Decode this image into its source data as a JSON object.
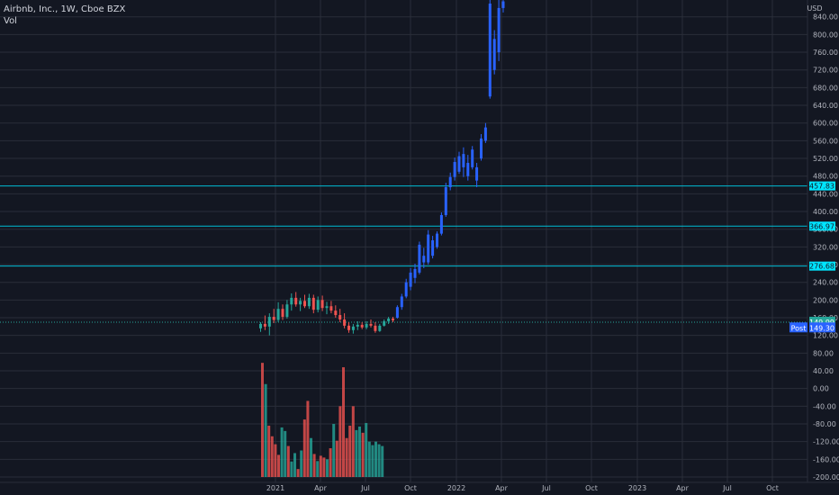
{
  "legend": {
    "symbol_line": "Airbnb, Inc., 1W, Cboe BZX",
    "volume_label": "Vol"
  },
  "currency": "USD",
  "post_label": "Post",
  "colors": {
    "background": "#131722",
    "grid": "#2a2e39",
    "up": "#26a69a",
    "down": "#ef5350",
    "blue": "#2962ff",
    "level_line": "#00bcd4",
    "level_tag_bg": "#00e5ff",
    "vol_up": "#26a69a",
    "vol_down": "#ef5350"
  },
  "chart_data": {
    "type": "candlestick",
    "title": "Airbnb, Inc., 1W, Cboe BZX",
    "y_unit": "USD",
    "ylim": [
      -200,
      880
    ],
    "y_ticks": [
      "840.00",
      "800.00",
      "760.00",
      "720.00",
      "680.00",
      "640.00",
      "600.00",
      "560.00",
      "520.00",
      "480.00",
      "440.00",
      "400.00",
      "360.00",
      "320.00",
      "280.00",
      "240.00",
      "200.00",
      "160.00",
      "120.00",
      "80.00",
      "40.00",
      "0.00",
      "-40.00",
      "-80.00",
      "-120.00",
      "-160.00",
      "-200.00"
    ],
    "x_ticks": [
      "2021",
      "Apr",
      "Jul",
      "Oct",
      "2022",
      "Apr",
      "Jul",
      "Oct",
      "2023",
      "Apr",
      "Jul",
      "Oct"
    ],
    "price_levels": [
      {
        "value": 457.83,
        "label": "457.83"
      },
      {
        "value": 366.97,
        "label": "366.97"
      },
      {
        "value": 276.68,
        "label": "276.68"
      }
    ],
    "last_price": {
      "value": 149.99,
      "label": "149.99"
    },
    "post_price": {
      "value": 149.3,
      "label": "149.30"
    },
    "candles": [
      {
        "o": 136,
        "h": 150,
        "l": 128,
        "c": 146,
        "color": "up"
      },
      {
        "o": 146,
        "h": 165,
        "l": 132,
        "c": 140,
        "color": "down"
      },
      {
        "o": 140,
        "h": 170,
        "l": 120,
        "c": 162,
        "color": "up"
      },
      {
        "o": 162,
        "h": 180,
        "l": 148,
        "c": 155,
        "color": "down"
      },
      {
        "o": 155,
        "h": 195,
        "l": 150,
        "c": 180,
        "color": "up"
      },
      {
        "o": 180,
        "h": 190,
        "l": 155,
        "c": 162,
        "color": "down"
      },
      {
        "o": 162,
        "h": 200,
        "l": 158,
        "c": 190,
        "color": "up"
      },
      {
        "o": 190,
        "h": 215,
        "l": 176,
        "c": 205,
        "color": "up"
      },
      {
        "o": 205,
        "h": 218,
        "l": 185,
        "c": 190,
        "color": "down"
      },
      {
        "o": 190,
        "h": 205,
        "l": 175,
        "c": 198,
        "color": "up"
      },
      {
        "o": 198,
        "h": 212,
        "l": 182,
        "c": 186,
        "color": "down"
      },
      {
        "o": 186,
        "h": 214,
        "l": 180,
        "c": 205,
        "color": "up"
      },
      {
        "o": 205,
        "h": 212,
        "l": 170,
        "c": 178,
        "color": "down"
      },
      {
        "o": 178,
        "h": 208,
        "l": 172,
        "c": 200,
        "color": "up"
      },
      {
        "o": 200,
        "h": 210,
        "l": 175,
        "c": 182,
        "color": "down"
      },
      {
        "o": 182,
        "h": 196,
        "l": 168,
        "c": 186,
        "color": "up"
      },
      {
        "o": 186,
        "h": 198,
        "l": 170,
        "c": 176,
        "color": "down"
      },
      {
        "o": 176,
        "h": 188,
        "l": 160,
        "c": 166,
        "color": "down"
      },
      {
        "o": 166,
        "h": 180,
        "l": 150,
        "c": 156,
        "color": "down"
      },
      {
        "o": 156,
        "h": 170,
        "l": 136,
        "c": 142,
        "color": "down"
      },
      {
        "o": 142,
        "h": 150,
        "l": 126,
        "c": 132,
        "color": "down"
      },
      {
        "o": 132,
        "h": 146,
        "l": 124,
        "c": 140,
        "color": "up"
      },
      {
        "o": 140,
        "h": 152,
        "l": 132,
        "c": 144,
        "color": "up"
      },
      {
        "o": 144,
        "h": 150,
        "l": 134,
        "c": 138,
        "color": "down"
      },
      {
        "o": 138,
        "h": 152,
        "l": 134,
        "c": 146,
        "color": "up"
      },
      {
        "o": 146,
        "h": 156,
        "l": 138,
        "c": 142,
        "color": "down"
      },
      {
        "o": 142,
        "h": 150,
        "l": 126,
        "c": 130,
        "color": "down"
      },
      {
        "o": 130,
        "h": 146,
        "l": 128,
        "c": 142,
        "color": "up"
      },
      {
        "o": 142,
        "h": 156,
        "l": 140,
        "c": 152,
        "color": "up"
      },
      {
        "o": 152,
        "h": 162,
        "l": 146,
        "c": 158,
        "color": "up"
      },
      {
        "o": 158,
        "h": 162,
        "l": 150,
        "c": 154,
        "color": "down"
      },
      {
        "o": 160,
        "h": 188,
        "l": 158,
        "c": 184,
        "color": "blue"
      },
      {
        "o": 184,
        "h": 214,
        "l": 178,
        "c": 208,
        "color": "blue"
      },
      {
        "o": 208,
        "h": 248,
        "l": 204,
        "c": 240,
        "color": "blue"
      },
      {
        "o": 230,
        "h": 272,
        "l": 222,
        "c": 262,
        "color": "blue"
      },
      {
        "o": 250,
        "h": 282,
        "l": 238,
        "c": 270,
        "color": "blue"
      },
      {
        "o": 262,
        "h": 332,
        "l": 258,
        "c": 325,
        "color": "blue"
      },
      {
        "o": 285,
        "h": 318,
        "l": 272,
        "c": 300,
        "color": "blue"
      },
      {
        "o": 285,
        "h": 358,
        "l": 280,
        "c": 348,
        "color": "blue"
      },
      {
        "o": 300,
        "h": 345,
        "l": 294,
        "c": 335,
        "color": "blue"
      },
      {
        "o": 320,
        "h": 355,
        "l": 316,
        "c": 350,
        "color": "blue"
      },
      {
        "o": 350,
        "h": 398,
        "l": 346,
        "c": 392,
        "color": "blue"
      },
      {
        "o": 392,
        "h": 465,
        "l": 388,
        "c": 455,
        "color": "blue"
      },
      {
        "o": 455,
        "h": 488,
        "l": 448,
        "c": 478,
        "color": "blue"
      },
      {
        "o": 478,
        "h": 522,
        "l": 470,
        "c": 512,
        "color": "blue"
      },
      {
        "o": 490,
        "h": 535,
        "l": 485,
        "c": 525,
        "color": "blue"
      },
      {
        "o": 500,
        "h": 545,
        "l": 478,
        "c": 530,
        "color": "blue"
      },
      {
        "o": 480,
        "h": 528,
        "l": 470,
        "c": 510,
        "color": "blue"
      },
      {
        "o": 500,
        "h": 548,
        "l": 495,
        "c": 540,
        "color": "blue"
      },
      {
        "o": 470,
        "h": 510,
        "l": 455,
        "c": 500,
        "color": "blue"
      },
      {
        "o": 520,
        "h": 575,
        "l": 515,
        "c": 565,
        "color": "blue"
      },
      {
        "o": 560,
        "h": 600,
        "l": 555,
        "c": 590,
        "color": "blue"
      },
      {
        "o": 660,
        "h": 880,
        "l": 655,
        "c": 870,
        "color": "blue"
      },
      {
        "o": 720,
        "h": 810,
        "l": 710,
        "c": 790,
        "color": "blue"
      },
      {
        "o": 760,
        "h": 880,
        "l": 740,
        "c": 860,
        "color": "blue"
      },
      {
        "o": 860,
        "h": 880,
        "l": 850,
        "c": 875,
        "color": "blue"
      }
    ],
    "volume": [
      {
        "v": 58,
        "color": "down"
      },
      {
        "v": 10,
        "color": "up"
      },
      {
        "v": -84,
        "color": "down"
      },
      {
        "v": -108,
        "color": "down"
      },
      {
        "v": -126,
        "color": "down"
      },
      {
        "v": -150,
        "color": "down"
      },
      {
        "v": -88,
        "color": "up"
      },
      {
        "v": -96,
        "color": "up"
      },
      {
        "v": -130,
        "color": "down"
      },
      {
        "v": -165,
        "color": "up"
      },
      {
        "v": -146,
        "color": "up"
      },
      {
        "v": -182,
        "color": "down"
      },
      {
        "v": -140,
        "color": "up"
      },
      {
        "v": -70,
        "color": "down"
      },
      {
        "v": -28,
        "color": "down"
      },
      {
        "v": -112,
        "color": "up"
      },
      {
        "v": -148,
        "color": "down"
      },
      {
        "v": -164,
        "color": "up"
      },
      {
        "v": -152,
        "color": "down"
      },
      {
        "v": -156,
        "color": "down"
      },
      {
        "v": -160,
        "color": "up"
      },
      {
        "v": -135,
        "color": "down"
      },
      {
        "v": -80,
        "color": "up"
      },
      {
        "v": -118,
        "color": "down"
      },
      {
        "v": -40,
        "color": "down"
      },
      {
        "v": 48,
        "color": "down"
      },
      {
        "v": -112,
        "color": "down"
      },
      {
        "v": -84,
        "color": "down"
      },
      {
        "v": -40,
        "color": "down"
      },
      {
        "v": -94,
        "color": "up"
      },
      {
        "v": -86,
        "color": "up"
      },
      {
        "v": -100,
        "color": "down"
      },
      {
        "v": -78,
        "color": "up"
      },
      {
        "v": -120,
        "color": "up"
      },
      {
        "v": -128,
        "color": "up"
      },
      {
        "v": -120,
        "color": "up"
      },
      {
        "v": -126,
        "color": "up"
      },
      {
        "v": -130,
        "color": "up"
      }
    ]
  }
}
